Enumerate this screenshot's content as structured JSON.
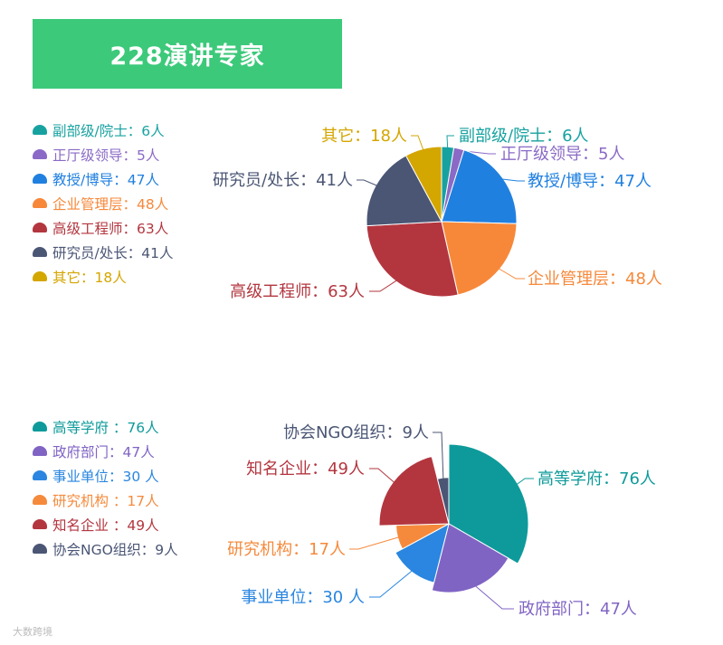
{
  "title": "228演讲专家",
  "watermark": "大数跨境",
  "chart_data": [
    {
      "type": "pie",
      "series": [
        {
          "name": "副部级/院士",
          "value": 6,
          "color": "#17a2a0",
          "legend_label": "副部级/院士：6人",
          "slice_label": "副部级/院士：6人"
        },
        {
          "name": "正厅级领导",
          "value": 5,
          "color": "#8a6ac6",
          "legend_label": "正厅级领导：5人",
          "slice_label": "正厅级领导：5人"
        },
        {
          "name": "教授/博导",
          "value": 47,
          "color": "#2080e0",
          "legend_label": "教授/博导：47人",
          "slice_label": "教授/博导：47人"
        },
        {
          "name": "企业管理层",
          "value": 48,
          "color": "#f7883a",
          "legend_label": "企业管理层：48人",
          "slice_label": "企业管理层：48人"
        },
        {
          "name": "高级工程师",
          "value": 63,
          "color": "#b3363f",
          "legend_label": "高级工程师：63人",
          "slice_label": "高级工程师：63人"
        },
        {
          "name": "研究员/处长",
          "value": 41,
          "color": "#4b5675",
          "legend_label": "研究员/处长：41人",
          "slice_label": "研究员/处长：41人"
        },
        {
          "name": "其它",
          "value": 18,
          "color": "#d4a600",
          "legend_label": "其它：18人",
          "slice_label": "其它：18人"
        }
      ]
    },
    {
      "type": "pie",
      "rose": true,
      "series": [
        {
          "name": "高等学府",
          "value": 76,
          "color": "#0e9a9a",
          "legend_label": "高等学府 ：76人",
          "slice_label": "高等学府：76人"
        },
        {
          "name": "政府部门",
          "value": 47,
          "color": "#8064c4",
          "legend_label": "政府部门：47人",
          "slice_label": "政府部门：47人"
        },
        {
          "name": "事业单位",
          "value": 30,
          "color": "#2a86e0",
          "legend_label": "事业单位：30 人",
          "slice_label": "事业单位：30 人"
        },
        {
          "name": "研究机构",
          "value": 17,
          "color": "#f58a3c",
          "legend_label": "研究机构 ：17人",
          "slice_label": "研究机构：17人"
        },
        {
          "name": "知名企业",
          "value": 49,
          "color": "#b3363f",
          "legend_label": "知名企业 ：49人",
          "slice_label": "知名企业：49人"
        },
        {
          "name": "协会NGO组织",
          "value": 9,
          "color": "#4b5675",
          "legend_label": "协会NGO组织：9人",
          "slice_label": "协会NGO组织：9人"
        }
      ]
    }
  ]
}
